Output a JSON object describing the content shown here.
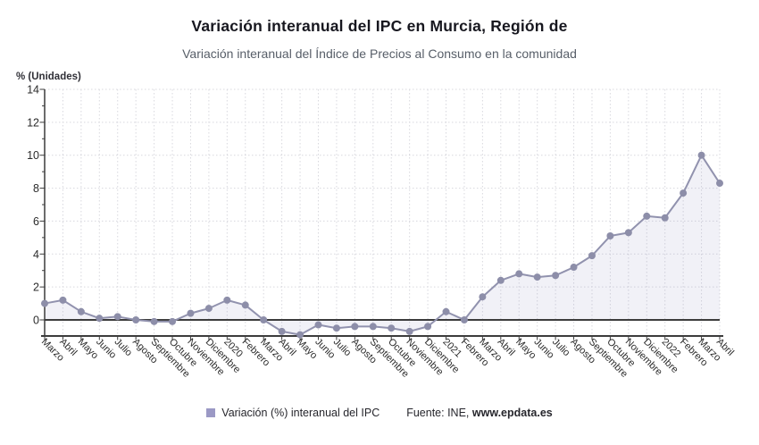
{
  "header": {
    "title": "Variación interanual del IPC en Murcia, Región de",
    "subtitle": "Variación interanual del Índice de Precios al Consumo en la comunidad"
  },
  "chart_data": {
    "type": "line",
    "title": "Variación interanual del IPC en Murcia, Región de",
    "subtitle": "Variación interanual del Índice de Precios al Consumo en la comunidad",
    "ylabel": "% (Unidades)",
    "xlabel": "",
    "categories": [
      "Marzo",
      "Abril",
      "Mayo",
      "Junio",
      "Julio",
      "Agosto",
      "Septiembre",
      "Octubre",
      "Noviembre",
      "Diciembre",
      "2020",
      "Febrero",
      "Marzo",
      "Abril",
      "Mayo",
      "Junio",
      "Julio",
      "Agosto",
      "Septiembre",
      "Octubre",
      "Noviembre",
      "Diciembre",
      "2021",
      "Febrero",
      "Marzo",
      "Abril",
      "Mayo",
      "Junio",
      "Julio",
      "Agosto",
      "Septiembre",
      "Octubre",
      "Noviembre",
      "Diciembre",
      "2022",
      "Febrero",
      "Marzo",
      "Abril"
    ],
    "series": [
      {
        "name": "Variación (%) interanual del IPC",
        "values": [
          1.0,
          1.2,
          0.5,
          0.1,
          0.2,
          0.0,
          -0.1,
          -0.1,
          0.4,
          0.7,
          1.2,
          0.9,
          0.0,
          -0.7,
          -0.9,
          -0.3,
          -0.5,
          -0.4,
          -0.4,
          -0.5,
          -0.7,
          -0.4,
          0.5,
          0.0,
          1.4,
          2.4,
          2.8,
          2.6,
          2.7,
          3.2,
          3.9,
          5.1,
          5.3,
          6.3,
          6.2,
          7.7,
          10.0,
          8.3
        ]
      }
    ],
    "yticks": [
      0,
      2,
      4,
      6,
      8,
      10,
      12,
      14
    ],
    "ylim": [
      -1.2,
      14
    ],
    "grid": true,
    "grid_style": "dotted",
    "legend_position": "bottom",
    "colors": {
      "line": "#9192ae",
      "marker": "#8d8ea9",
      "area_fill": "rgba(148,150,190,0.13)",
      "grid": "#d8d8de",
      "axis": "#3c3c3c",
      "tick_text": "#2b2b2b"
    }
  },
  "legend": {
    "series_label": "Variación (%) interanual del IPC",
    "swatch_color": "#9b99c5"
  },
  "source": {
    "prefix": "Fuente: INE, ",
    "site": "www.epdata.es"
  }
}
